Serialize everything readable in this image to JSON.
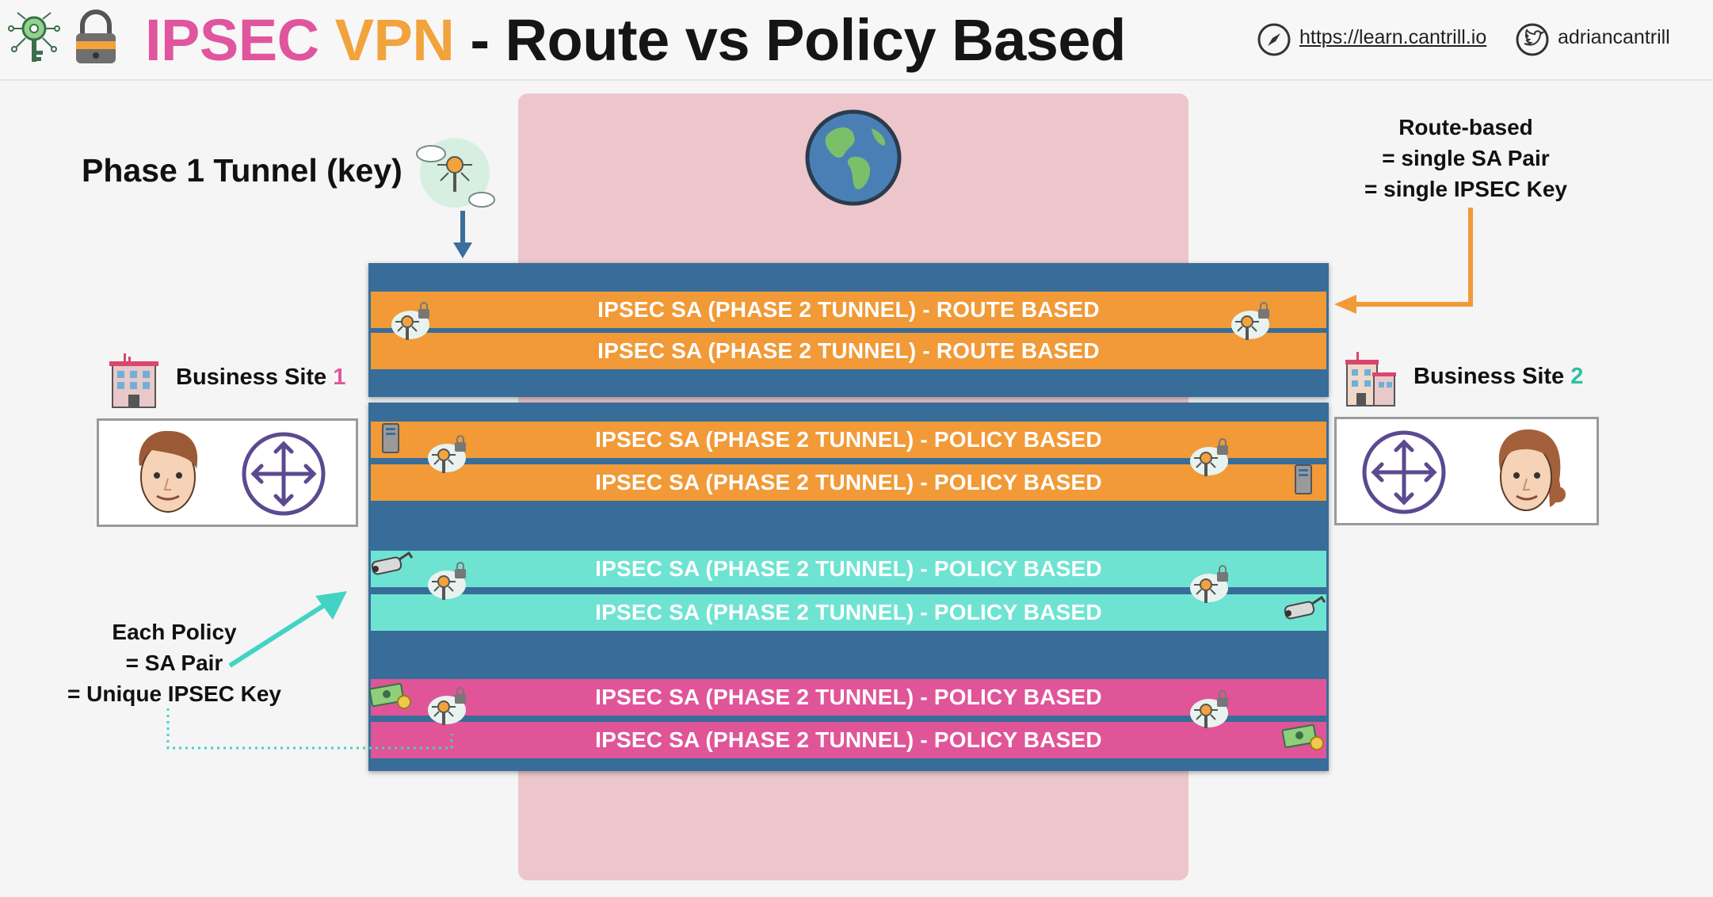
{
  "header": {
    "title_ipsec": "IPSEC",
    "title_vpn": "VPN",
    "title_rest": "- Route vs Policy Based",
    "website": "https://learn.cantrill.io",
    "twitter": "adriancantrill"
  },
  "phase1": {
    "label": "Phase 1 Tunnel (key)"
  },
  "notes": {
    "route_based": [
      "Route-based",
      "= single SA Pair",
      "= single IPSEC Key"
    ],
    "policy_based": [
      "Each Policy",
      "= SA Pair",
      "= Unique IPSEC Key"
    ]
  },
  "sites": {
    "site1": {
      "label": "Business Site",
      "number": "1"
    },
    "site2": {
      "label": "Business Site",
      "number": "2"
    }
  },
  "tunnels": [
    {
      "label": "IPSEC SA (PHASE 2 TUNNEL) - ROUTE BASED",
      "group": "route",
      "color": "#f19a37"
    },
    {
      "label": "IPSEC SA (PHASE 2 TUNNEL) - ROUTE BASED",
      "group": "route",
      "color": "#f19a37"
    },
    {
      "label": "IPSEC SA (PHASE 2 TUNNEL) - POLICY BASED",
      "group": "policy-server",
      "color": "#f19a37"
    },
    {
      "label": "IPSEC SA (PHASE 2 TUNNEL) - POLICY BASED",
      "group": "policy-server",
      "color": "#f19a37"
    },
    {
      "label": "IPSEC SA (PHASE 2 TUNNEL) - POLICY BASED",
      "group": "policy-camera",
      "color": "#6fe3d2"
    },
    {
      "label": "IPSEC SA (PHASE 2 TUNNEL) - POLICY BASED",
      "group": "policy-camera",
      "color": "#6fe3d2"
    },
    {
      "label": "IPSEC SA (PHASE 2 TUNNEL) - POLICY BASED",
      "group": "policy-money",
      "color": "#e05598"
    },
    {
      "label": "IPSEC SA (PHASE 2 TUNNEL) - POLICY BASED",
      "group": "policy-money",
      "color": "#e05598"
    }
  ],
  "colors": {
    "tunnel_stack": "#386d99",
    "internet": "#ecc6cb",
    "arrow_blue": "#3a6f9d",
    "arrow_orange": "#f19a37",
    "arrow_teal": "#43d3c4",
    "router": "#5b4a8f"
  },
  "icons": [
    "key-network-icon",
    "padlock-icon",
    "compass-icon",
    "twitter-icon",
    "globe-icon",
    "cloud-key-icon",
    "building-icon",
    "man-avatar-icon",
    "woman-avatar-icon",
    "router-icon",
    "server-icon",
    "camera-icon",
    "money-icon"
  ]
}
